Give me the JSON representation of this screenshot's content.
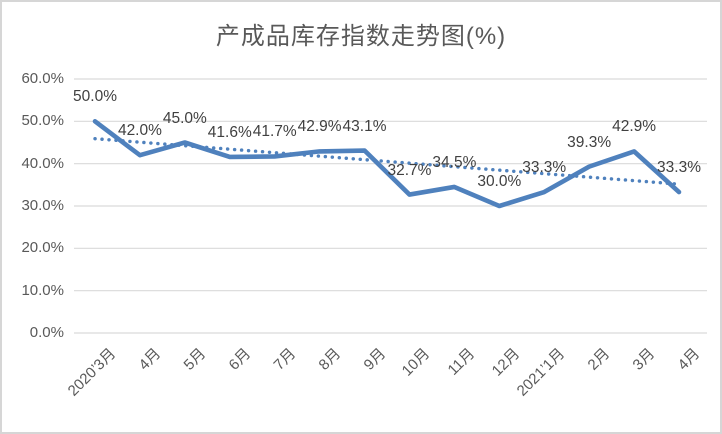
{
  "title": "产成品库存指数走势图(%)",
  "chart_data": {
    "type": "line",
    "title": "产成品库存指数走势图(%)",
    "categories": [
      "2020’3月",
      "4月",
      "5月",
      "6月",
      "7月",
      "8月",
      "9月",
      "10月",
      "11月",
      "12月",
      "2021’1月",
      "2月",
      "3月",
      "4月"
    ],
    "series": [
      {
        "name": "产成品库存指数",
        "values": [
          50.0,
          42.0,
          45.0,
          41.6,
          41.7,
          42.9,
          43.1,
          32.7,
          34.5,
          30.0,
          33.3,
          39.3,
          42.9,
          33.3
        ],
        "data_labels": [
          "50.0%",
          "42.0%",
          "45.0%",
          "41.6%",
          "41.7%",
          "42.9%",
          "43.1%",
          "32.7%",
          "34.5%",
          "30.0%",
          "33.3%",
          "39.3%",
          "42.9%",
          "33.3%"
        ],
        "color": "#4f81bd",
        "style": "solid"
      }
    ],
    "trendline": {
      "name": "线性趋势线",
      "style": "dotted",
      "color": "#4f81bd",
      "start_value": 45.9,
      "end_value": 35.2
    },
    "y_ticks": [
      "0.0%",
      "10.0%",
      "20.0%",
      "30.0%",
      "40.0%",
      "50.0%",
      "60.0%"
    ],
    "ylim": [
      0,
      60
    ],
    "y_tick_step": 10,
    "xlabel": "",
    "ylabel": "",
    "grid": true,
    "gridline_color": "#d9d9d9",
    "legend_position": "none",
    "background_color": "#ffffff",
    "border_color": "#d6d6d6",
    "title_color": "#595959",
    "axis_label_color": "#595959",
    "data_label_color": "#404040"
  }
}
